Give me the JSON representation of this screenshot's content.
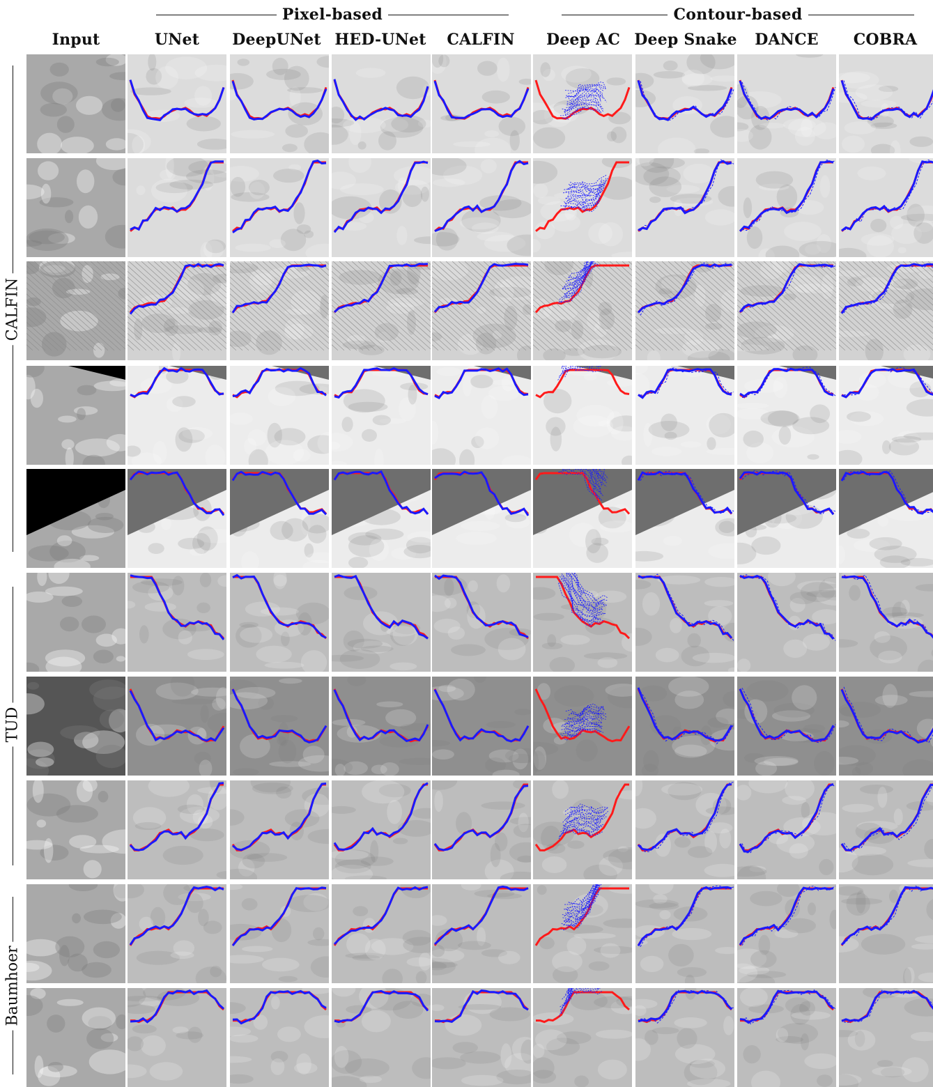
{
  "group_headers": [
    {
      "label": "Pixel-based"
    },
    {
      "label": "Contour-based"
    }
  ],
  "columns": [
    "Input",
    "UNet",
    "DeepUNet",
    "HED-UNet",
    "CALFIN",
    "Deep AC",
    "Deep Snake",
    "DANCE",
    "COBRA"
  ],
  "row_groups": [
    {
      "label": "CALFIN",
      "rows": 5
    },
    {
      "label": "TUD",
      "rows": 3
    },
    {
      "label": "Baumhoer",
      "rows": 2
    }
  ],
  "colors": {
    "ground_truth": "#ff1a1a",
    "prediction": "#1a1aff",
    "background_dark": "#6e6e6e",
    "background_light": "#d9d9d9"
  },
  "rows": [
    {
      "bg": "light",
      "dark_corner": "none"
    },
    {
      "bg": "light",
      "dark_corner": "none"
    },
    {
      "bg": "striped",
      "dark_corner": "none"
    },
    {
      "bg": "white",
      "dark_corner": "top-right"
    },
    {
      "bg": "white",
      "dark_corner": "top"
    },
    {
      "bg": "mid",
      "dark_corner": "none"
    },
    {
      "bg": "dark",
      "dark_corner": "none"
    },
    {
      "bg": "mid",
      "dark_corner": "none"
    },
    {
      "bg": "mid",
      "dark_corner": "none"
    },
    {
      "bg": "mid",
      "dark_corner": "none"
    }
  ]
}
